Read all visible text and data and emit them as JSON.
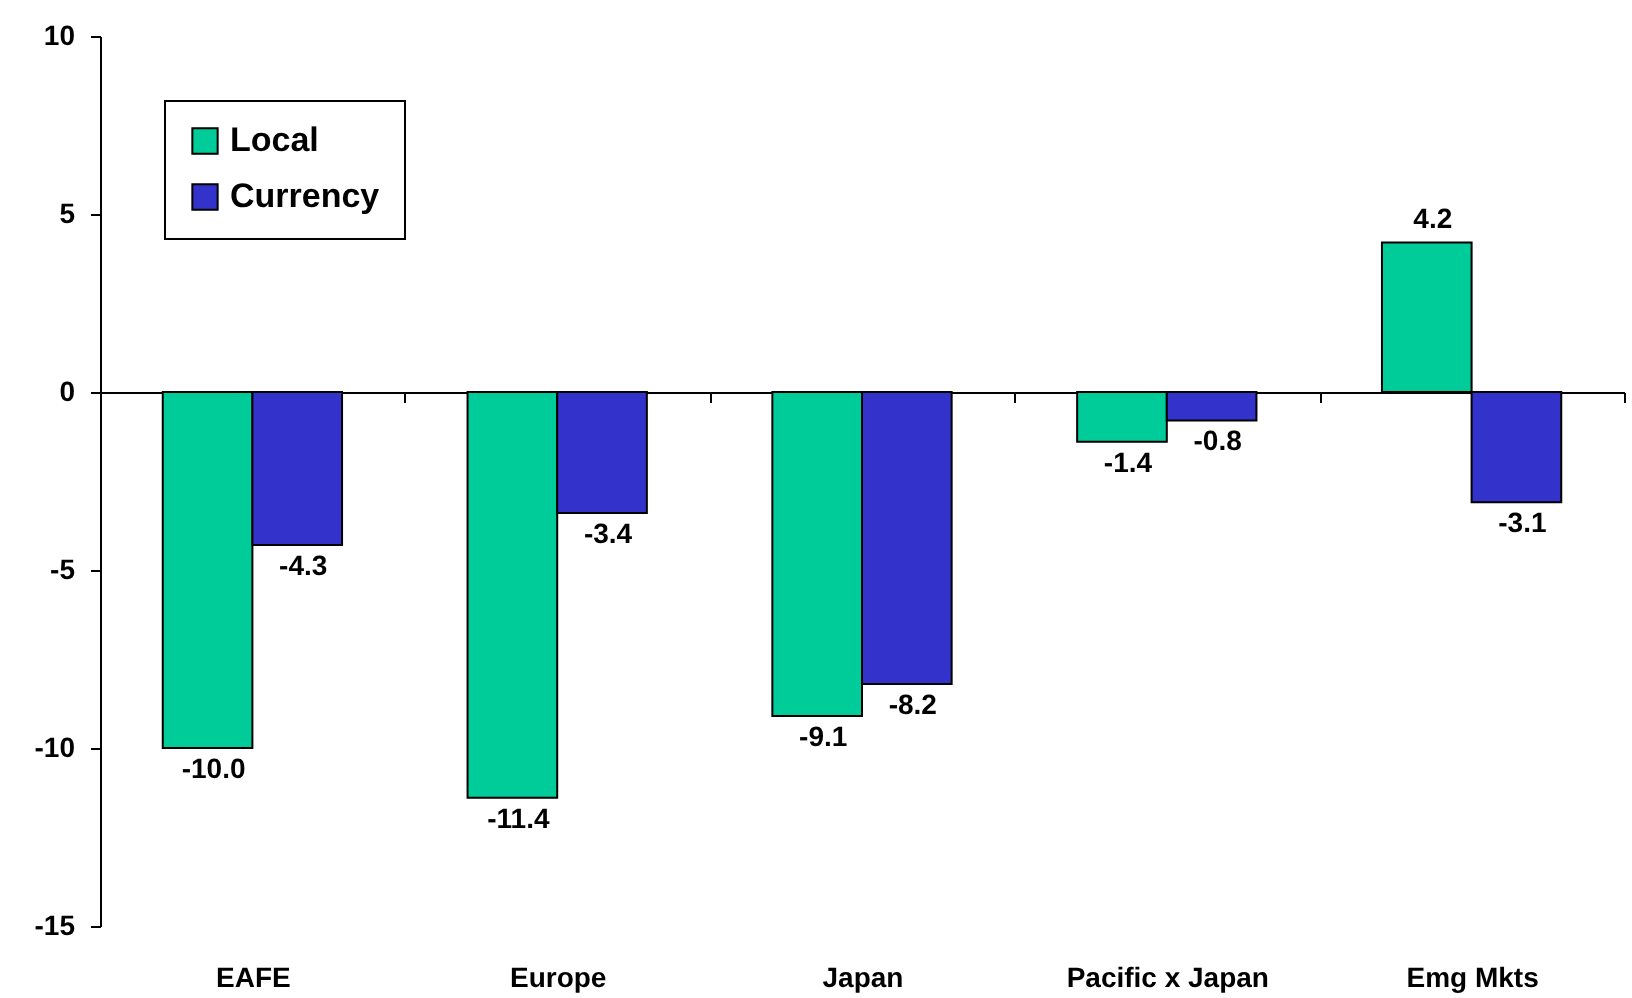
{
  "chart_data": {
    "type": "bar",
    "categories": [
      "EAFE",
      "Europe",
      "Japan",
      "Pacific x Japan",
      "Emg Mkts"
    ],
    "series": [
      {
        "name": "Local",
        "color": "#00cc99",
        "values": [
          -10.0,
          -11.4,
          -9.1,
          -1.4,
          4.2
        ],
        "value_labels": [
          "-10.0",
          "-11.4",
          "-9.1",
          "-1.4",
          "4.2"
        ]
      },
      {
        "name": "Currency",
        "color": "#3333cc",
        "values": [
          -4.3,
          -3.4,
          -8.2,
          -0.8,
          -3.1
        ],
        "value_labels": [
          "-4.3",
          "-3.4",
          "-8.2",
          "-0.8",
          "-3.1"
        ]
      }
    ],
    "ylim": [
      -15,
      10
    ],
    "yticks": [
      10,
      5,
      0,
      -5,
      -10,
      -15
    ],
    "legend": "top left"
  }
}
